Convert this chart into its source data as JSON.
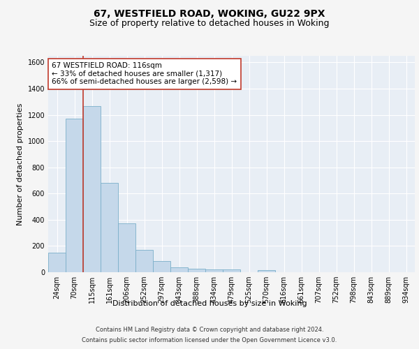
{
  "title1": "67, WESTFIELD ROAD, WOKING, GU22 9PX",
  "title2": "Size of property relative to detached houses in Woking",
  "xlabel": "Distribution of detached houses by size in Woking",
  "ylabel": "Number of detached properties",
  "categories": [
    "24sqm",
    "70sqm",
    "115sqm",
    "161sqm",
    "206sqm",
    "252sqm",
    "297sqm",
    "343sqm",
    "388sqm",
    "434sqm",
    "479sqm",
    "525sqm",
    "570sqm",
    "616sqm",
    "661sqm",
    "707sqm",
    "752sqm",
    "798sqm",
    "843sqm",
    "889sqm",
    "934sqm"
  ],
  "values": [
    150,
    1170,
    1265,
    680,
    375,
    170,
    85,
    37,
    28,
    20,
    20,
    0,
    15,
    0,
    0,
    0,
    0,
    0,
    0,
    0,
    0
  ],
  "bar_color": "#c5d8ea",
  "bar_edgecolor": "#7aafc9",
  "vline_color": "#c0392b",
  "annotation_text": "67 WESTFIELD ROAD: 116sqm\n← 33% of detached houses are smaller (1,317)\n66% of semi-detached houses are larger (2,598) →",
  "annotation_box_color": "#ffffff",
  "annotation_box_edgecolor": "#c0392b",
  "ylim": [
    0,
    1650
  ],
  "yticks": [
    0,
    200,
    400,
    600,
    800,
    1000,
    1200,
    1400,
    1600
  ],
  "footer1": "Contains HM Land Registry data © Crown copyright and database right 2024.",
  "footer2": "Contains public sector information licensed under the Open Government Licence v3.0.",
  "plot_bg_color": "#e8eef5",
  "fig_bg_color": "#f5f5f5",
  "grid_color": "#ffffff",
  "title_fontsize": 10,
  "subtitle_fontsize": 9,
  "tick_fontsize": 7,
  "ylabel_fontsize": 8,
  "xlabel_fontsize": 8,
  "footer_fontsize": 6,
  "annot_fontsize": 7.5
}
